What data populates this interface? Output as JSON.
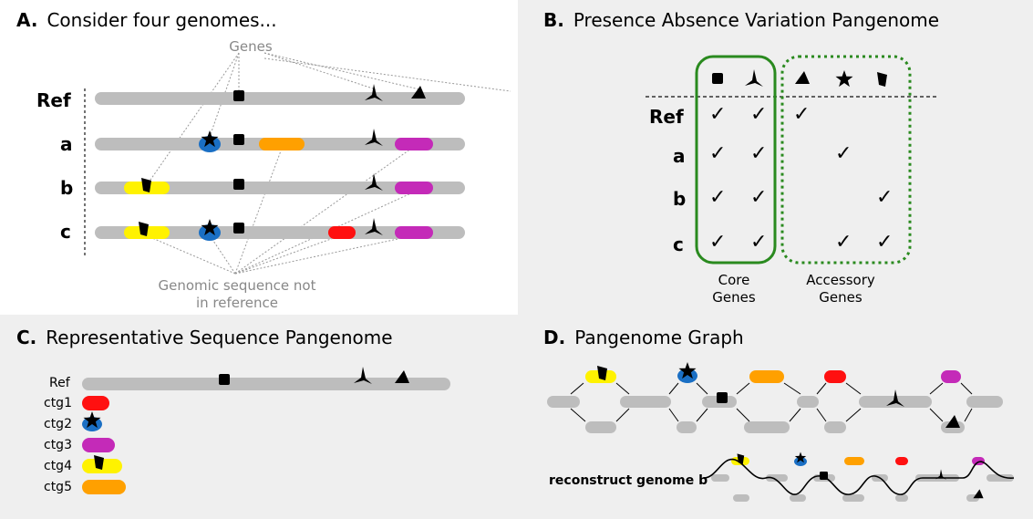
{
  "panelA": {
    "letter": "A.",
    "title": "Consider four genomes...",
    "genes_label": "Genes",
    "genomes": [
      "Ref",
      "a",
      "b",
      "c"
    ],
    "note_line1": "Genomic sequence not",
    "note_line2": "in reference"
  },
  "panelB": {
    "letter": "B.",
    "title": "Presence Absence Variation Pangenome",
    "rows": [
      "Ref",
      "a",
      "b",
      "c"
    ],
    "check": "✓",
    "core_line1": "Core",
    "core_line2": "Genes",
    "acc_line1": "Accessory",
    "acc_line2": "Genes"
  },
  "panelC": {
    "letter": "C.",
    "title": "Representative Sequence Pangenome",
    "labels": [
      "Ref",
      "ctg1",
      "ctg2",
      "ctg3",
      "ctg4",
      "ctg5"
    ]
  },
  "panelD": {
    "letter": "D.",
    "title": "Pangenome Graph",
    "reconstruct": "reconstruct genome b"
  },
  "colors": {
    "bar": "#bdbdbd",
    "panel_bg": "#efefef",
    "blue": "#1a6fc4",
    "orange": "#ffa000",
    "magenta": "#c42ab8",
    "yellow": "#fff200",
    "red": "#ff1010",
    "green": "#2a8a1f"
  }
}
